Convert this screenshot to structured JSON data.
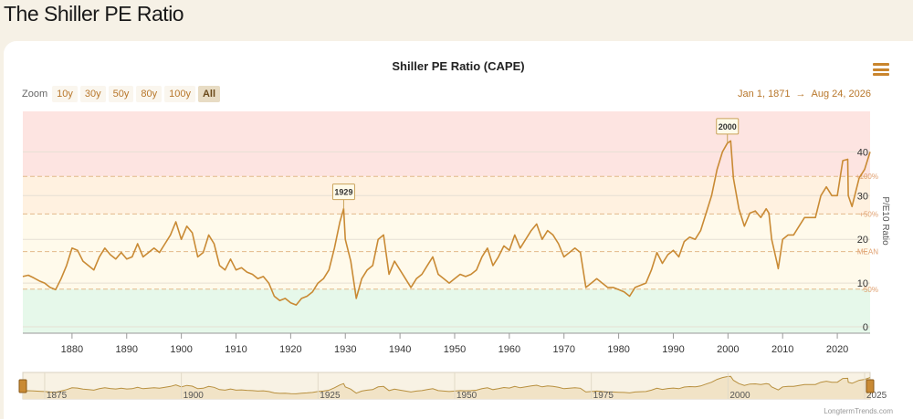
{
  "page": {
    "title": "The Shiller PE Ratio"
  },
  "menu": {
    "icon": "hamburger-menu-icon"
  },
  "zoom": {
    "label": "Zoom",
    "buttons": [
      "10y",
      "30y",
      "50y",
      "80y",
      "100y",
      "All"
    ],
    "active": "All"
  },
  "range": {
    "from": "Jan 1, 1871",
    "arrow": "→",
    "to": "Aug 24, 2026"
  },
  "credits": "LongtermTrends.com",
  "colors": {
    "line": "#c98a34",
    "band_red": "#fde4e1",
    "band_orange": "#fff1e0",
    "band_yellow": "#fffaeb",
    "band_green": "#e6f8ea",
    "annotation_border": "#c9a25a"
  },
  "chart_data": {
    "type": "line",
    "title": "Shiller PE Ratio (CAPE)",
    "ylabel": "P/E10 Ratio",
    "xlim": [
      1871,
      2026
    ],
    "ylim": [
      0,
      50
    ],
    "x_ticks": [
      1880,
      1890,
      1900,
      1910,
      1920,
      1930,
      1940,
      1950,
      1960,
      1970,
      1980,
      1990,
      2000,
      2010,
      2020
    ],
    "y_ticks": [
      0,
      10,
      20,
      30,
      40
    ],
    "reference_lines": [
      {
        "label": "+100%",
        "value": 34.4
      },
      {
        "label": "+50%",
        "value": 25.8
      },
      {
        "label": "MEAN",
        "value": 17.2
      },
      {
        "label": "-50%",
        "value": 8.6
      }
    ],
    "annotations": [
      {
        "label": "1929",
        "x": 1929.7,
        "y": 27
      },
      {
        "label": "2000",
        "x": 1999.9,
        "y": 42
      }
    ],
    "navigator_ticks": [
      1875,
      1900,
      1925,
      1950,
      1975,
      2000,
      2025
    ],
    "series": [
      {
        "x": [
          1871,
          1872,
          1873,
          1874,
          1875,
          1876,
          1877,
          1878,
          1879,
          1880,
          1881,
          1882,
          1883,
          1884,
          1885,
          1886,
          1887,
          1888,
          1889,
          1890,
          1891,
          1892,
          1893,
          1894,
          1895,
          1896,
          1897,
          1898,
          1899,
          1900,
          1901,
          1902,
          1903,
          1904,
          1905,
          1906,
          1907,
          1908,
          1909,
          1910,
          1911,
          1912,
          1913,
          1914,
          1915,
          1916,
          1917,
          1918,
          1919,
          1920,
          1921,
          1922,
          1923,
          1924,
          1925,
          1926,
          1927,
          1928,
          1929,
          1929.7,
          1930,
          1931,
          1932,
          1933,
          1934,
          1935,
          1936,
          1937,
          1938,
          1939,
          1940,
          1941,
          1942,
          1943,
          1944,
          1945,
          1946,
          1947,
          1948,
          1949,
          1950,
          1951,
          1952,
          1953,
          1954,
          1955,
          1956,
          1957,
          1958,
          1959,
          1960,
          1961,
          1962,
          1963,
          1964,
          1965,
          1966,
          1967,
          1968,
          1969,
          1970,
          1971,
          1972,
          1973,
          1974,
          1975,
          1976,
          1977,
          1978,
          1979,
          1980,
          1981,
          1982,
          1983,
          1984,
          1985,
          1986,
          1987,
          1988,
          1989,
          1990,
          1991,
          1992,
          1993,
          1994,
          1995,
          1996,
          1997,
          1998,
          1999,
          1999.9,
          2000.5,
          2001,
          2002,
          2003,
          2004,
          2005,
          2006,
          2007,
          2007.5,
          2008,
          2009,
          2009.2,
          2010,
          2011,
          2012,
          2013,
          2014,
          2015,
          2016,
          2017,
          2018,
          2019,
          2020,
          2021,
          2021.9,
          2022,
          2022.7,
          2023,
          2024,
          2025,
          2026
        ],
        "values": [
          11.5,
          11.8,
          11.2,
          10.5,
          10.0,
          9.0,
          8.5,
          11.0,
          14.0,
          18.0,
          17.5,
          15.0,
          14.0,
          13.0,
          16.0,
          18.0,
          16.5,
          15.5,
          17.0,
          15.5,
          16.0,
          19.0,
          16.0,
          17.0,
          18.0,
          17.0,
          19.0,
          21.0,
          24.0,
          20.0,
          23.0,
          21.5,
          16.0,
          17.0,
          21.0,
          19.0,
          14.0,
          13.0,
          15.5,
          13.0,
          13.5,
          12.5,
          12.0,
          11.0,
          11.5,
          10.0,
          7.0,
          6.0,
          6.5,
          5.5,
          5.0,
          6.5,
          7.0,
          8.0,
          10.0,
          11.0,
          13.0,
          18.0,
          24.0,
          27.0,
          20.0,
          15.0,
          6.5,
          11.0,
          13.0,
          14.0,
          20.0,
          21.0,
          12.0,
          15.0,
          13.0,
          11.0,
          9.0,
          11.0,
          12.0,
          14.0,
          16.0,
          12.0,
          11.0,
          10.0,
          11.0,
          12.0,
          11.5,
          12.0,
          13.0,
          16.0,
          18.0,
          14.0,
          16.0,
          18.5,
          17.5,
          21.0,
          18.0,
          20.0,
          22.0,
          23.5,
          20.0,
          22.0,
          21.0,
          19.0,
          16.0,
          17.0,
          18.0,
          17.0,
          9.0,
          10.0,
          11.0,
          10.0,
          9.0,
          9.0,
          8.5,
          8.0,
          7.0,
          9.0,
          9.5,
          10.0,
          13.0,
          17.0,
          14.5,
          16.5,
          17.5,
          16.0,
          19.5,
          20.5,
          20.0,
          22.0,
          26.0,
          30.0,
          36.0,
          40.0,
          42.0,
          42.5,
          34.0,
          27.0,
          23.0,
          26.0,
          26.5,
          25.0,
          27.0,
          26.0,
          20.0,
          14.5,
          13.3,
          20.0,
          21.0,
          21.0,
          23.0,
          25.0,
          25.0,
          25.0,
          30.0,
          32.0,
          30.0,
          30.0,
          38.0,
          38.3,
          30.0,
          27.5,
          29.0,
          34.0,
          36.0,
          40.0
        ]
      }
    ]
  }
}
